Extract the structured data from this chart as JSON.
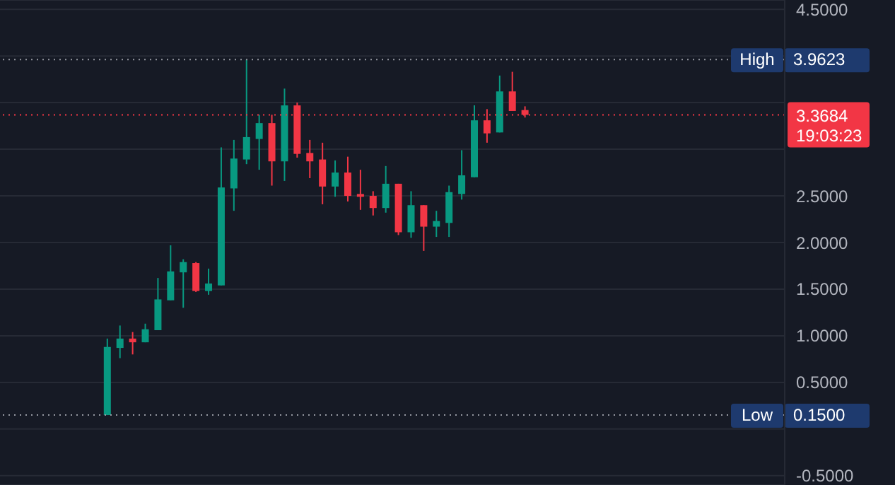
{
  "chart_data": {
    "type": "candlestick",
    "categories": [
      null,
      null,
      null,
      null,
      null,
      null,
      null,
      null,
      null,
      null,
      null,
      null,
      null,
      null,
      null,
      null,
      null,
      null,
      null,
      null,
      null,
      null,
      null,
      null,
      null,
      null,
      null,
      null,
      null,
      null,
      null,
      null,
      null,
      null,
      null,
      null,
      null,
      null,
      null,
      null,
      null,
      null,
      null,
      null,
      null,
      null,
      null,
      null,
      null,
      null,
      null,
      null,
      null,
      null,
      null,
      null,
      null,
      null,
      null,
      null,
      null,
      null
    ],
    "ohlc": [
      null,
      null,
      null,
      null,
      null,
      null,
      null,
      null,
      [
        0.15,
        0.97,
        0.15,
        0.88
      ],
      [
        0.87,
        1.11,
        0.76,
        0.97
      ],
      [
        0.97,
        1.04,
        0.8,
        0.93
      ],
      [
        0.93,
        1.13,
        0.93,
        1.07
      ],
      [
        1.06,
        1.62,
        1.06,
        1.39
      ],
      [
        1.38,
        1.97,
        1.38,
        1.69
      ],
      [
        1.68,
        1.82,
        1.3,
        1.79
      ],
      [
        1.78,
        1.79,
        1.47,
        1.48
      ],
      [
        1.48,
        1.72,
        1.44,
        1.56
      ],
      [
        1.54,
        3.02,
        1.54,
        2.59
      ],
      [
        2.58,
        3.1,
        2.34,
        2.9
      ],
      [
        2.89,
        3.9623,
        2.84,
        3.13
      ],
      [
        3.11,
        3.37,
        2.78,
        3.28
      ],
      [
        3.28,
        3.37,
        2.61,
        2.87
      ],
      [
        2.87,
        3.65,
        2.66,
        3.47
      ],
      [
        3.47,
        3.5,
        2.91,
        2.95
      ],
      [
        2.96,
        3.1,
        2.69,
        2.87
      ],
      [
        2.89,
        3.07,
        2.41,
        2.6
      ],
      [
        2.6,
        2.88,
        2.49,
        2.75
      ],
      [
        2.75,
        2.92,
        2.44,
        2.5
      ],
      [
        2.52,
        2.78,
        2.35,
        2.49
      ],
      [
        2.5,
        2.55,
        2.29,
        2.37
      ],
      [
        2.37,
        2.82,
        2.32,
        2.63
      ],
      [
        2.63,
        2.63,
        2.08,
        2.11
      ],
      [
        2.11,
        2.55,
        2.05,
        2.4
      ],
      [
        2.4,
        2.4,
        1.91,
        2.17
      ],
      [
        2.17,
        2.34,
        2.06,
        2.23
      ],
      [
        2.21,
        2.61,
        2.06,
        2.54
      ],
      [
        2.52,
        2.99,
        2.46,
        2.72
      ],
      [
        2.7,
        3.47,
        2.7,
        3.31
      ],
      [
        3.31,
        3.43,
        3.07,
        3.17
      ],
      [
        3.18,
        3.79,
        3.18,
        3.62
      ],
      [
        3.62,
        3.83,
        3.41,
        3.41
      ],
      [
        3.42,
        3.46,
        3.34,
        3.3684
      ],
      null,
      null,
      null,
      null,
      null,
      null,
      null,
      null,
      null,
      null,
      null,
      null,
      null,
      null,
      null,
      null,
      null,
      null,
      null,
      null
    ],
    "ylim": [
      -0.6,
      4.6
    ],
    "yticks": [
      {
        "value": -0.5,
        "label": "-0.5000"
      },
      {
        "value": 0,
        "label": null
      },
      {
        "value": 0.5,
        "label": "0.5000"
      },
      {
        "value": 1,
        "label": "1.0000"
      },
      {
        "value": 1.5,
        "label": "1.5000"
      },
      {
        "value": 2,
        "label": "2.0000"
      },
      {
        "value": 2.5,
        "label": "2.5000"
      },
      {
        "value": 3,
        "label": null
      },
      {
        "value": 3.5,
        "label": null
      },
      {
        "value": 4,
        "label": null
      },
      {
        "value": 4.5,
        "label": "4.5000"
      }
    ],
    "grid": "y",
    "annotations": [
      "3.9623",
      "0.1500",
      "3.3684"
    ],
    "ref_lines": [
      {
        "axis": "y",
        "value": 3.9623,
        "label": "High",
        "line_style": "dotted"
      },
      {
        "axis": "y",
        "value": 0.15,
        "label": "Low",
        "line_style": "dotted"
      },
      {
        "axis": "y",
        "value": 3.3684,
        "label": "19:03:23",
        "color": "#f23645",
        "line_style": "dotted"
      }
    ]
  }
}
